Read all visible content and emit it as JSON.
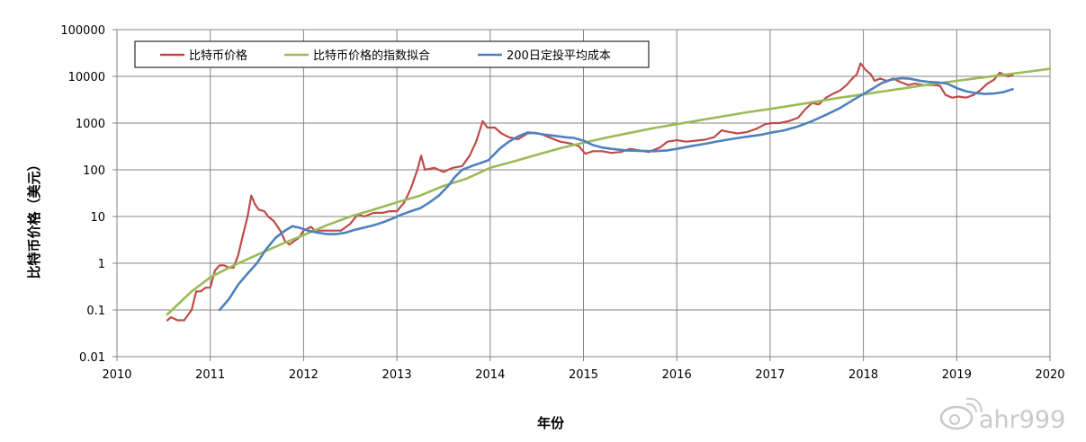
{
  "chart_data": {
    "type": "line",
    "xlabel": "年份",
    "ylabel": "比特币价格（美元）",
    "xlim": [
      2010,
      2020
    ],
    "ylim": [
      0.01,
      100000
    ],
    "yscale": "log",
    "grid": true,
    "legend_position": "top-left",
    "x_ticks": [
      "2010",
      "2011",
      "2012",
      "2013",
      "2014",
      "2015",
      "2016",
      "2017",
      "2018",
      "2019",
      "2020"
    ],
    "y_ticks": [
      "100000",
      "10000",
      "1000",
      "100",
      "10",
      "1",
      "0.1",
      "0.01"
    ],
    "series": [
      {
        "name": "比特币价格",
        "color": "#be4b48",
        "points": [
          [
            2010.54,
            0.06
          ],
          [
            2010.58,
            0.07
          ],
          [
            2010.65,
            0.06
          ],
          [
            2010.72,
            0.06
          ],
          [
            2010.8,
            0.1
          ],
          [
            2010.85,
            0.25
          ],
          [
            2010.9,
            0.25
          ],
          [
            2010.95,
            0.3
          ],
          [
            2011.0,
            0.3
          ],
          [
            2011.05,
            0.7
          ],
          [
            2011.1,
            0.9
          ],
          [
            2011.15,
            0.9
          ],
          [
            2011.2,
            0.8
          ],
          [
            2011.25,
            0.8
          ],
          [
            2011.3,
            1.5
          ],
          [
            2011.35,
            4
          ],
          [
            2011.4,
            10
          ],
          [
            2011.44,
            28
          ],
          [
            2011.48,
            18
          ],
          [
            2011.52,
            14
          ],
          [
            2011.58,
            13
          ],
          [
            2011.62,
            10
          ],
          [
            2011.68,
            8
          ],
          [
            2011.75,
            5
          ],
          [
            2011.8,
            3
          ],
          [
            2011.85,
            2.5
          ],
          [
            2011.9,
            3
          ],
          [
            2011.95,
            3.5
          ],
          [
            2012.0,
            5
          ],
          [
            2012.08,
            6
          ],
          [
            2012.12,
            5
          ],
          [
            2012.2,
            5
          ],
          [
            2012.3,
            5
          ],
          [
            2012.4,
            5
          ],
          [
            2012.5,
            7
          ],
          [
            2012.58,
            11
          ],
          [
            2012.65,
            10
          ],
          [
            2012.75,
            12
          ],
          [
            2012.85,
            12
          ],
          [
            2012.92,
            13
          ],
          [
            2013.0,
            13
          ],
          [
            2013.08,
            20
          ],
          [
            2013.15,
            40
          ],
          [
            2013.22,
            100
          ],
          [
            2013.26,
            200
          ],
          [
            2013.3,
            100
          ],
          [
            2013.4,
            110
          ],
          [
            2013.5,
            90
          ],
          [
            2013.6,
            110
          ],
          [
            2013.7,
            120
          ],
          [
            2013.78,
            200
          ],
          [
            2013.85,
            400
          ],
          [
            2013.92,
            1100
          ],
          [
            2013.97,
            800
          ],
          [
            2014.05,
            800
          ],
          [
            2014.12,
            600
          ],
          [
            2014.2,
            500
          ],
          [
            2014.3,
            450
          ],
          [
            2014.4,
            600
          ],
          [
            2014.48,
            620
          ],
          [
            2014.55,
            580
          ],
          [
            2014.65,
            480
          ],
          [
            2014.75,
            400
          ],
          [
            2014.85,
            370
          ],
          [
            2014.95,
            320
          ],
          [
            2015.02,
            220
          ],
          [
            2015.1,
            250
          ],
          [
            2015.2,
            250
          ],
          [
            2015.3,
            230
          ],
          [
            2015.4,
            240
          ],
          [
            2015.5,
            280
          ],
          [
            2015.6,
            260
          ],
          [
            2015.7,
            240
          ],
          [
            2015.82,
            300
          ],
          [
            2015.9,
            400
          ],
          [
            2016.0,
            430
          ],
          [
            2016.1,
            400
          ],
          [
            2016.2,
            420
          ],
          [
            2016.3,
            440
          ],
          [
            2016.4,
            500
          ],
          [
            2016.48,
            700
          ],
          [
            2016.55,
            650
          ],
          [
            2016.65,
            600
          ],
          [
            2016.75,
            640
          ],
          [
            2016.85,
            750
          ],
          [
            2016.95,
            950
          ],
          [
            2017.02,
            1000
          ],
          [
            2017.1,
            1000
          ],
          [
            2017.2,
            1100
          ],
          [
            2017.3,
            1300
          ],
          [
            2017.38,
            2000
          ],
          [
            2017.45,
            2700
          ],
          [
            2017.52,
            2500
          ],
          [
            2017.6,
            3500
          ],
          [
            2017.68,
            4300
          ],
          [
            2017.75,
            5000
          ],
          [
            2017.82,
            6500
          ],
          [
            2017.88,
            9000
          ],
          [
            2017.93,
            11000
          ],
          [
            2017.97,
            19000
          ],
          [
            2018.02,
            14000
          ],
          [
            2018.08,
            11000
          ],
          [
            2018.12,
            8000
          ],
          [
            2018.18,
            9000
          ],
          [
            2018.25,
            8000
          ],
          [
            2018.32,
            9000
          ],
          [
            2018.4,
            7500
          ],
          [
            2018.48,
            6500
          ],
          [
            2018.55,
            7000
          ],
          [
            2018.65,
            6500
          ],
          [
            2018.75,
            6500
          ],
          [
            2018.82,
            6300
          ],
          [
            2018.88,
            4000
          ],
          [
            2018.95,
            3500
          ],
          [
            2019.02,
            3700
          ],
          [
            2019.1,
            3500
          ],
          [
            2019.18,
            4000
          ],
          [
            2019.25,
            5000
          ],
          [
            2019.33,
            7000
          ],
          [
            2019.4,
            8500
          ],
          [
            2019.46,
            12000
          ],
          [
            2019.5,
            11000
          ],
          [
            2019.55,
            10000
          ],
          [
            2019.6,
            10500
          ]
        ]
      },
      {
        "name": "比特币价格的指数拟合",
        "color": "#9bbb59",
        "points": [
          [
            2010.54,
            0.08
          ],
          [
            2010.8,
            0.25
          ],
          [
            2011.0,
            0.5
          ],
          [
            2011.25,
            0.9
          ],
          [
            2011.5,
            1.5
          ],
          [
            2011.75,
            2.5
          ],
          [
            2012.0,
            4
          ],
          [
            2012.25,
            6.5
          ],
          [
            2012.5,
            10
          ],
          [
            2012.75,
            14
          ],
          [
            2013.0,
            20
          ],
          [
            2013.25,
            28
          ],
          [
            2013.5,
            45
          ],
          [
            2013.75,
            65
          ],
          [
            2014.0,
            110
          ],
          [
            2014.25,
            150
          ],
          [
            2014.5,
            210
          ],
          [
            2014.75,
            290
          ],
          [
            2015.0,
            380
          ],
          [
            2015.25,
            490
          ],
          [
            2015.5,
            620
          ],
          [
            2015.75,
            780
          ],
          [
            2016.0,
            950
          ],
          [
            2016.25,
            1150
          ],
          [
            2016.5,
            1400
          ],
          [
            2016.75,
            1700
          ],
          [
            2017.0,
            2000
          ],
          [
            2017.25,
            2400
          ],
          [
            2017.5,
            2900
          ],
          [
            2017.75,
            3500
          ],
          [
            2018.0,
            4100
          ],
          [
            2018.25,
            4900
          ],
          [
            2018.5,
            5800
          ],
          [
            2018.75,
            6900
          ],
          [
            2019.0,
            8000
          ],
          [
            2019.25,
            9300
          ],
          [
            2019.5,
            10800
          ],
          [
            2019.75,
            12500
          ],
          [
            2020.0,
            14500
          ]
        ]
      },
      {
        "name": "200日定投平均成本",
        "color": "#4f81bd",
        "points": [
          [
            2011.1,
            0.1
          ],
          [
            2011.2,
            0.17
          ],
          [
            2011.3,
            0.35
          ],
          [
            2011.4,
            0.6
          ],
          [
            2011.5,
            1.0
          ],
          [
            2011.6,
            2.0
          ],
          [
            2011.7,
            3.5
          ],
          [
            2011.8,
            5
          ],
          [
            2011.88,
            6.2
          ],
          [
            2011.95,
            5.8
          ],
          [
            2012.05,
            5.0
          ],
          [
            2012.15,
            4.5
          ],
          [
            2012.25,
            4.2
          ],
          [
            2012.35,
            4.2
          ],
          [
            2012.45,
            4.5
          ],
          [
            2012.55,
            5.2
          ],
          [
            2012.65,
            5.8
          ],
          [
            2012.75,
            6.5
          ],
          [
            2012.85,
            7.5
          ],
          [
            2012.95,
            9
          ],
          [
            2013.05,
            11
          ],
          [
            2013.15,
            13
          ],
          [
            2013.25,
            15
          ],
          [
            2013.35,
            20
          ],
          [
            2013.45,
            28
          ],
          [
            2013.55,
            45
          ],
          [
            2013.62,
            70
          ],
          [
            2013.7,
            100
          ],
          [
            2013.8,
            120
          ],
          [
            2013.9,
            140
          ],
          [
            2013.98,
            160
          ],
          [
            2014.1,
            280
          ],
          [
            2014.2,
            400
          ],
          [
            2014.3,
            520
          ],
          [
            2014.4,
            630
          ],
          [
            2014.5,
            600
          ],
          [
            2014.6,
            560
          ],
          [
            2014.7,
            530
          ],
          [
            2014.8,
            500
          ],
          [
            2014.9,
            480
          ],
          [
            2015.0,
            420
          ],
          [
            2015.1,
            340
          ],
          [
            2015.2,
            300
          ],
          [
            2015.3,
            280
          ],
          [
            2015.45,
            260
          ],
          [
            2015.6,
            255
          ],
          [
            2015.75,
            250
          ],
          [
            2015.9,
            260
          ],
          [
            2016.0,
            280
          ],
          [
            2016.15,
            320
          ],
          [
            2016.3,
            360
          ],
          [
            2016.45,
            410
          ],
          [
            2016.6,
            460
          ],
          [
            2016.75,
            510
          ],
          [
            2016.9,
            560
          ],
          [
            2017.0,
            620
          ],
          [
            2017.15,
            700
          ],
          [
            2017.3,
            850
          ],
          [
            2017.45,
            1100
          ],
          [
            2017.6,
            1500
          ],
          [
            2017.75,
            2100
          ],
          [
            2017.9,
            3200
          ],
          [
            2018.0,
            4200
          ],
          [
            2018.1,
            5500
          ],
          [
            2018.2,
            7200
          ],
          [
            2018.3,
            8500
          ],
          [
            2018.4,
            9100
          ],
          [
            2018.5,
            8900
          ],
          [
            2018.6,
            8100
          ],
          [
            2018.7,
            7600
          ],
          [
            2018.8,
            7400
          ],
          [
            2018.9,
            7000
          ],
          [
            2019.0,
            5600
          ],
          [
            2019.1,
            4800
          ],
          [
            2019.2,
            4400
          ],
          [
            2019.3,
            4200
          ],
          [
            2019.4,
            4300
          ],
          [
            2019.5,
            4600
          ],
          [
            2019.6,
            5300
          ]
        ]
      }
    ]
  },
  "watermark": {
    "logo_icon": "weibo-logo-icon",
    "text": "ahr999"
  }
}
